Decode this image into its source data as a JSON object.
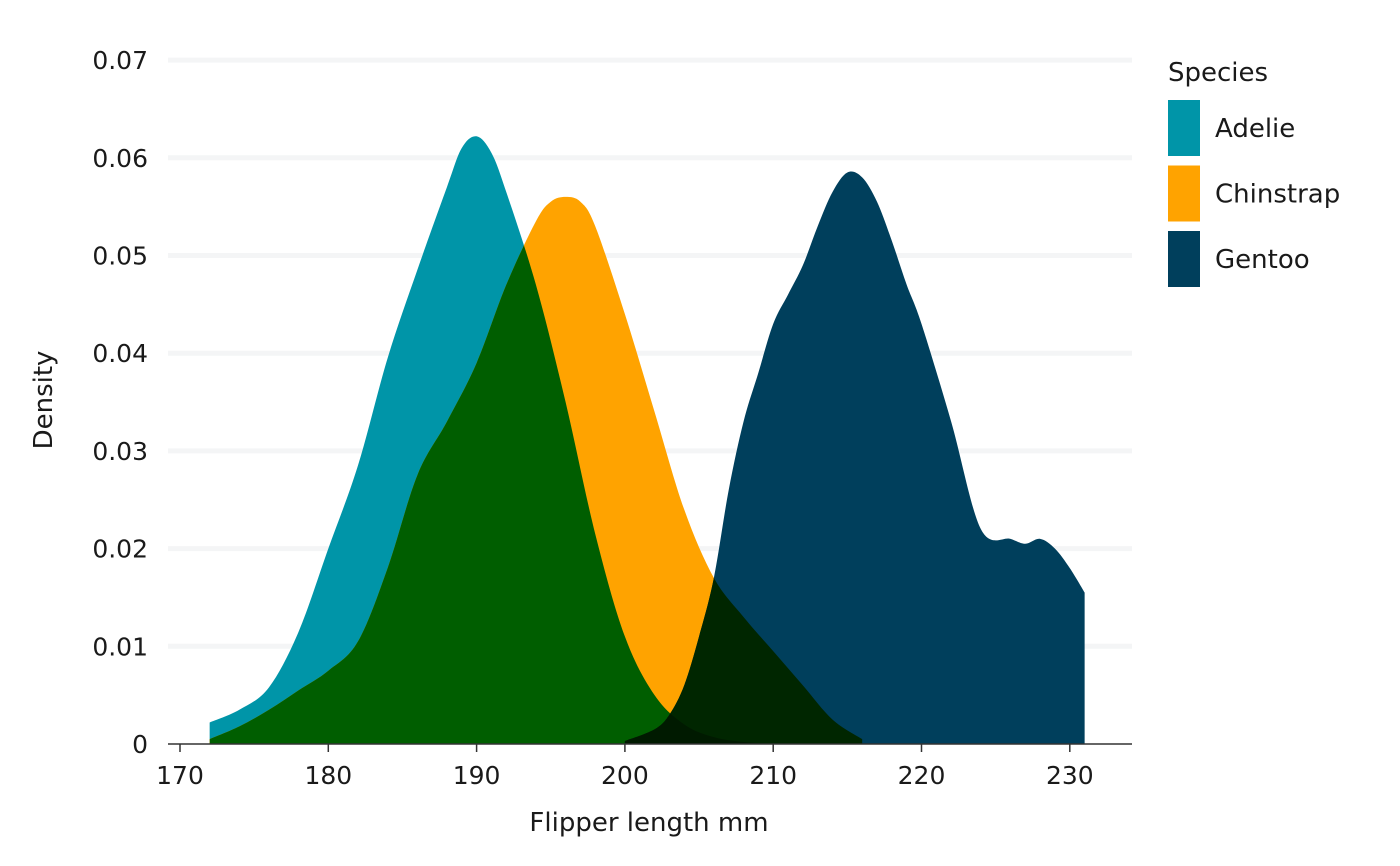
{
  "chart_data": {
    "type": "area",
    "xlabel": "Flipper length mm",
    "ylabel": "Density",
    "xlim": [
      170,
      234
    ],
    "ylim": [
      0,
      0.07
    ],
    "x_ticks": [
      170,
      180,
      190,
      200,
      210,
      220,
      230
    ],
    "y_ticks": [
      0,
      0.01,
      0.02,
      0.03,
      0.04,
      0.05,
      0.06,
      0.07
    ],
    "y_tick_labels": [
      "0",
      "0.01",
      "0.02",
      "0.03",
      "0.04",
      "0.05",
      "0.06",
      "0.07"
    ],
    "grid": "horizontal",
    "legend": {
      "title": "Species",
      "position": "right"
    },
    "overlap_colors": {
      "adelie_chinstrap": "#005e00",
      "adelie_gentoo": "#002600",
      "all": "#001a00"
    },
    "series": [
      {
        "name": "Adelie",
        "color": "#0095a8",
        "x": [
          172,
          174,
          176,
          178,
          180,
          182,
          184,
          186,
          188,
          189,
          190,
          191,
          192,
          194,
          196,
          198,
          200,
          202,
          204,
          206,
          208,
          210
        ],
        "y": [
          0.0022,
          0.0035,
          0.0058,
          0.0115,
          0.02,
          0.0285,
          0.0395,
          0.0485,
          0.057,
          0.061,
          0.0622,
          0.0605,
          0.0565,
          0.047,
          0.035,
          0.0215,
          0.011,
          0.005,
          0.002,
          0.0007,
          0.0002,
          0.0
        ]
      },
      {
        "name": "Chinstrap",
        "color": "#ffa300",
        "x": [
          172,
          174,
          176,
          178,
          180,
          182,
          184,
          186,
          188,
          190,
          192,
          194,
          195,
          196,
          197,
          198,
          200,
          202,
          204,
          206,
          208,
          210,
          212,
          214,
          216
        ],
        "y": [
          0.0005,
          0.0018,
          0.0035,
          0.0055,
          0.0075,
          0.0105,
          0.018,
          0.0275,
          0.033,
          0.039,
          0.047,
          0.0535,
          0.0555,
          0.056,
          0.0555,
          0.053,
          0.044,
          0.034,
          0.024,
          0.017,
          0.013,
          0.0095,
          0.006,
          0.0025,
          0.0005
        ]
      },
      {
        "name": "Gentoo",
        "color": "#003f5c",
        "x": [
          200,
          202,
          203,
          204,
          205,
          206,
          207,
          208,
          209,
          210,
          211,
          212,
          213,
          214,
          215,
          216,
          217,
          218,
          219,
          220,
          222,
          224,
          226,
          227,
          228,
          229,
          230,
          231
        ],
        "y": [
          0.0003,
          0.0015,
          0.003,
          0.006,
          0.011,
          0.017,
          0.026,
          0.033,
          0.038,
          0.043,
          0.046,
          0.049,
          0.053,
          0.0565,
          0.0585,
          0.058,
          0.0555,
          0.0515,
          0.047,
          0.043,
          0.033,
          0.022,
          0.021,
          0.0205,
          0.021,
          0.02,
          0.018,
          0.0155
        ]
      }
    ]
  }
}
